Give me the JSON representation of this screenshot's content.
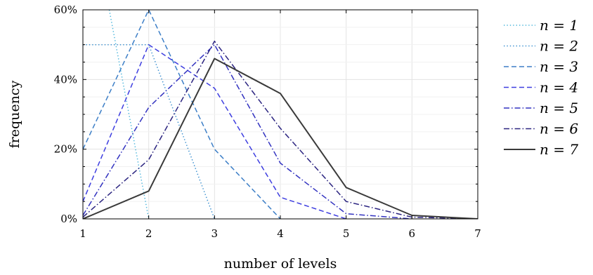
{
  "chart_data": {
    "type": "line",
    "xlabel": "number of levels",
    "ylabel": "frequency",
    "x_ticks": [
      "1",
      "2",
      "3",
      "4",
      "5",
      "6",
      "7"
    ],
    "y_ticks": [
      "0%",
      "20%",
      "40%",
      "60%"
    ],
    "xlim": [
      1,
      7
    ],
    "ylim": [
      0,
      60
    ],
    "grid": true,
    "legend_position": "right",
    "series": [
      {
        "name": "n = 1",
        "style": "dotted",
        "color": "#4db6dc",
        "points": [
          [
            1.4,
            60
          ],
          [
            2,
            0
          ]
        ]
      },
      {
        "name": "n = 2",
        "style": "dotted",
        "color": "#3a8fcf",
        "points": [
          [
            1,
            50
          ],
          [
            2,
            50
          ],
          [
            3,
            0
          ]
        ]
      },
      {
        "name": "n = 3",
        "style": "dashed",
        "color": "#3d7fc7",
        "points": [
          [
            1,
            20
          ],
          [
            2,
            60
          ],
          [
            3,
            20
          ],
          [
            4,
            0
          ]
        ]
      },
      {
        "name": "n = 4",
        "style": "dashed",
        "color": "#3e3ee0",
        "points": [
          [
            1,
            5
          ],
          [
            2,
            50
          ],
          [
            3,
            37.5
          ],
          [
            4,
            6.2
          ],
          [
            5,
            0
          ]
        ]
      },
      {
        "name": "n = 5",
        "style": "dashdot",
        "color": "#3232c0",
        "points": [
          [
            1,
            1
          ],
          [
            2,
            32
          ],
          [
            3,
            50
          ],
          [
            4,
            16
          ],
          [
            5,
            1.5
          ],
          [
            6,
            0
          ]
        ]
      },
      {
        "name": "n = 6",
        "style": "dashdot",
        "color": "#2b2480",
        "points": [
          [
            1,
            0.5
          ],
          [
            2,
            17
          ],
          [
            3,
            51
          ],
          [
            4,
            26
          ],
          [
            5,
            5
          ],
          [
            6,
            0.5
          ],
          [
            7,
            0
          ]
        ]
      },
      {
        "name": "n = 7",
        "style": "solid",
        "color": "#3a3a3a",
        "points": [
          [
            1,
            0
          ],
          [
            2,
            8
          ],
          [
            3,
            46
          ],
          [
            4,
            36
          ],
          [
            5,
            9
          ],
          [
            6,
            1
          ],
          [
            7,
            0
          ]
        ]
      }
    ]
  }
}
